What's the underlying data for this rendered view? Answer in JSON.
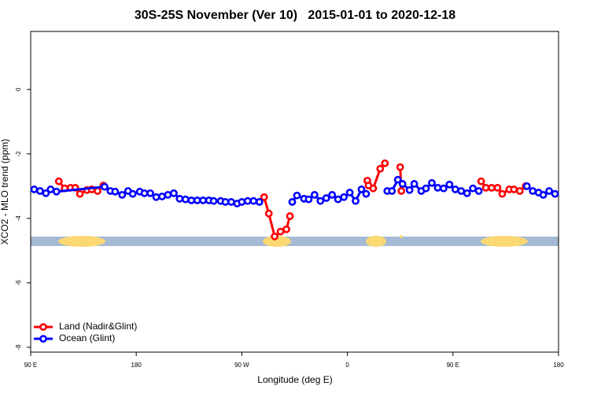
{
  "chart_data": {
    "type": "line",
    "title": "30S-25S November (Ver 10)   2015-01-01 to 2020-12-18",
    "xlabel": "Longitude (deg E)",
    "ylabel": "XCO2 - MLO trend (ppm)",
    "xlim": [
      90,
      540
    ],
    "ylim": [
      -8.15,
      1.8
    ],
    "xticks": [
      {
        "value": 90,
        "label": "90 E"
      },
      180,
      {
        "value": 270,
        "label": "90 W"
      },
      {
        "value": 360,
        "label": "0"
      },
      {
        "value": 450,
        "label": "90 E"
      },
      180
    ],
    "yticks": [
      0,
      -2,
      -4,
      -6,
      -8
    ],
    "legend": "bottom-left",
    "series": [
      {
        "name": "Land (Nadir&Glint)",
        "color": "#ff0000",
        "x": [
          114,
          119,
          124,
          128,
          132,
          138,
          142,
          147,
          152,
          null,
          289,
          293,
          298,
          303,
          308,
          311,
          null,
          377,
          378,
          382,
          388,
          392,
          null,
          405,
          406,
          null,
          474,
          478,
          483,
          488,
          492,
          498,
          502,
          507,
          512
        ],
        "values": [
          -2.85,
          -3.07,
          -3.05,
          -3.05,
          -3.24,
          -3.12,
          -3.1,
          -3.15,
          -2.98,
          null,
          -3.34,
          -3.85,
          -4.56,
          -4.41,
          -4.34,
          -3.93,
          null,
          -2.83,
          -2.98,
          -3.07,
          -2.46,
          -2.29,
          null,
          -2.41,
          -3.15,
          null,
          -2.85,
          -3.05,
          -3.05,
          -3.05,
          -3.24,
          -3.1,
          -3.1,
          -3.15,
          -3.0
        ]
      },
      {
        "name": "Ocean (Glint)",
        "color": "#0000ff",
        "x": [
          93,
          98,
          103,
          107,
          112,
          153,
          158,
          162,
          168,
          173,
          177,
          183,
          187,
          192,
          197,
          202,
          207,
          212,
          217,
          222,
          227,
          232,
          237,
          242,
          246,
          252,
          256,
          261,
          266,
          270,
          275,
          280,
          285,
          null,
          313,
          317,
          323,
          327,
          332,
          337,
          342,
          347,
          352,
          357,
          362,
          367,
          372,
          376,
          null,
          394,
          398,
          403,
          407,
          413,
          417,
          423,
          427,
          432,
          437,
          442,
          447,
          452,
          457,
          462,
          467,
          472,
          null,
          513,
          518,
          523,
          527,
          532,
          537
        ],
        "values": [
          -3.1,
          -3.15,
          -3.22,
          -3.1,
          -3.17,
          -3.02,
          -3.15,
          -3.17,
          -3.27,
          -3.15,
          -3.24,
          -3.17,
          -3.22,
          -3.22,
          -3.34,
          -3.32,
          -3.27,
          -3.22,
          -3.39,
          -3.41,
          -3.44,
          -3.44,
          -3.44,
          -3.44,
          -3.46,
          -3.46,
          -3.49,
          -3.49,
          -3.54,
          -3.49,
          -3.46,
          -3.46,
          -3.49,
          null,
          -3.49,
          -3.29,
          -3.39,
          -3.41,
          -3.27,
          -3.46,
          -3.37,
          -3.27,
          -3.41,
          -3.34,
          -3.2,
          -3.46,
          -3.1,
          -3.24,
          null,
          -3.15,
          -3.15,
          -2.8,
          -2.93,
          -3.12,
          -2.93,
          -3.15,
          -3.07,
          -2.9,
          -3.05,
          -3.07,
          -2.95,
          -3.1,
          -3.15,
          -3.22,
          -3.07,
          -3.15,
          null,
          -3.0,
          -3.15,
          -3.2,
          -3.27,
          -3.15,
          -3.24
        ]
      }
    ]
  }
}
